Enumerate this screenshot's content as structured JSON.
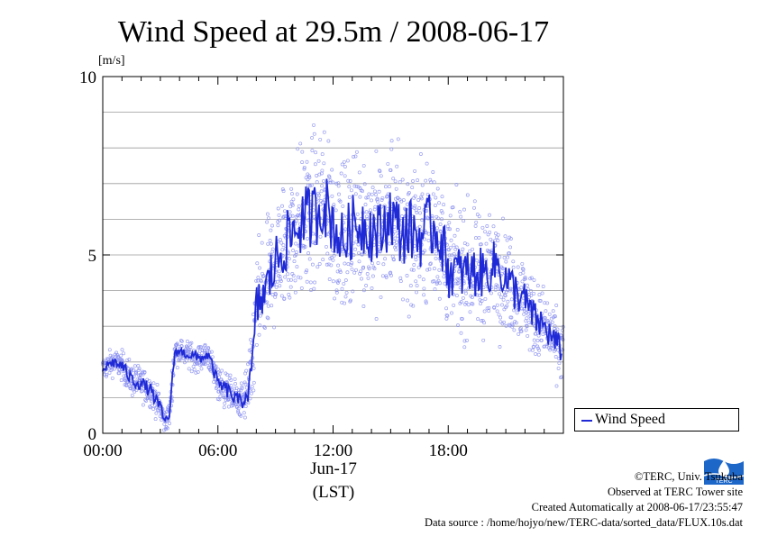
{
  "chart_data": {
    "type": "scatter",
    "title": "Wind Speed at 29.5m / 2008-06-17",
    "ylabel": "[m/s]",
    "xlabel_date": "Jun-17",
    "xlabel_unit": "(LST)",
    "ylim": [
      0,
      10
    ],
    "xlim": [
      "00:00",
      "24:00"
    ],
    "yticks": [
      "0",
      "5",
      "10"
    ],
    "xticks": [
      "00:00",
      "06:00",
      "12:00",
      "18:00"
    ],
    "grid": true,
    "legend": {
      "position": "bottom-right-outside",
      "entries": [
        "Wind Speed"
      ]
    },
    "series": [
      {
        "name": "Wind Speed",
        "style": "line with scatter of 10s samples",
        "color": "#1f2ad6",
        "scatter_color": "#8a8ff0",
        "x_hours": [
          0.0,
          0.5,
          1.0,
          1.5,
          2.0,
          2.5,
          3.0,
          3.25,
          3.5,
          3.75,
          4.0,
          4.5,
          5.0,
          5.5,
          6.0,
          6.5,
          7.0,
          7.25,
          7.5,
          7.75,
          8.0,
          8.5,
          9.0,
          9.5,
          10.0,
          10.5,
          11.0,
          11.5,
          12.0,
          12.5,
          13.0,
          13.5,
          14.0,
          14.5,
          15.0,
          15.5,
          16.0,
          16.5,
          17.0,
          17.5,
          18.0,
          18.5,
          19.0,
          19.5,
          20.0,
          20.5,
          21.0,
          21.5,
          22.0,
          22.5,
          23.0,
          23.5,
          23.9
        ],
        "values": [
          1.8,
          2.0,
          1.9,
          1.5,
          1.4,
          1.2,
          0.7,
          0.3,
          0.6,
          2.3,
          2.3,
          2.2,
          2.1,
          2.2,
          1.4,
          1.2,
          0.9,
          0.9,
          1.1,
          1.6,
          3.5,
          4.0,
          4.8,
          5.3,
          5.7,
          6.0,
          6.1,
          6.5,
          5.9,
          5.3,
          5.8,
          5.9,
          5.7,
          5.6,
          6.2,
          5.6,
          5.7,
          5.5,
          5.8,
          5.7,
          4.6,
          4.5,
          4.5,
          4.5,
          4.5,
          4.8,
          4.3,
          4.0,
          3.7,
          3.2,
          3.0,
          2.6,
          2.3
        ],
        "spread": [
          0.35,
          0.35,
          0.4,
          0.45,
          0.45,
          0.45,
          0.4,
          0.35,
          0.4,
          0.35,
          0.3,
          0.35,
          0.35,
          0.35,
          0.45,
          0.5,
          0.5,
          0.5,
          0.8,
          1.0,
          1.5,
          1.6,
          1.8,
          1.9,
          2.0,
          2.1,
          2.1,
          2.1,
          2.0,
          2.0,
          2.0,
          2.0,
          2.0,
          2.0,
          2.0,
          2.0,
          2.0,
          2.0,
          2.0,
          1.9,
          1.8,
          1.7,
          1.6,
          1.6,
          1.5,
          1.5,
          1.4,
          1.3,
          1.2,
          1.1,
          1.0,
          0.9,
          0.9
        ]
      }
    ]
  },
  "credits": {
    "copyright": "©TERC, Univ. Tsukuba",
    "observed": "Observed at TERC Tower site",
    "created": "Created Automatically at 2008-06-17/23:55:47",
    "source": "Data source : /home/hojyo/new/TERC-data/sorted_data/FLUX.10s.dat"
  },
  "logo": {
    "text": "TERC",
    "color": "#1d67c9",
    "icon": "terc-water-drop-logo"
  }
}
